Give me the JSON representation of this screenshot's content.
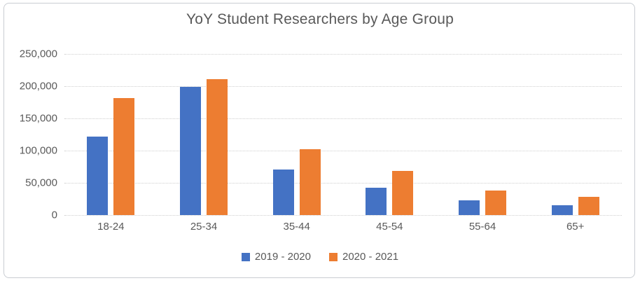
{
  "chart_data": {
    "type": "bar",
    "title": "YoY Student Researchers by Age Group",
    "categories": [
      "18-24",
      "25-34",
      "35-44",
      "45-54",
      "55-64",
      "65+"
    ],
    "series": [
      {
        "name": "2019 - 2020",
        "color": "#4472C4",
        "values": [
          122000,
          199000,
          71000,
          42000,
          23000,
          15000
        ]
      },
      {
        "name": "2020 - 2021",
        "color": "#ED7D31",
        "values": [
          181000,
          211000,
          102000,
          68000,
          38000,
          28000
        ]
      }
    ],
    "xlabel": "",
    "ylabel": "",
    "ylim": [
      0,
      250000
    ],
    "ytick_labels": [
      "250,000",
      "200,000",
      "150,000",
      "100,000",
      "50,000",
      "0"
    ],
    "grid": "horizontal-dotted",
    "legend_position": "bottom",
    "colors": {
      "text": "#595959",
      "gridline": "#cfcfcf",
      "frame_border": "#c9cdd2",
      "background": "#ffffff"
    }
  }
}
